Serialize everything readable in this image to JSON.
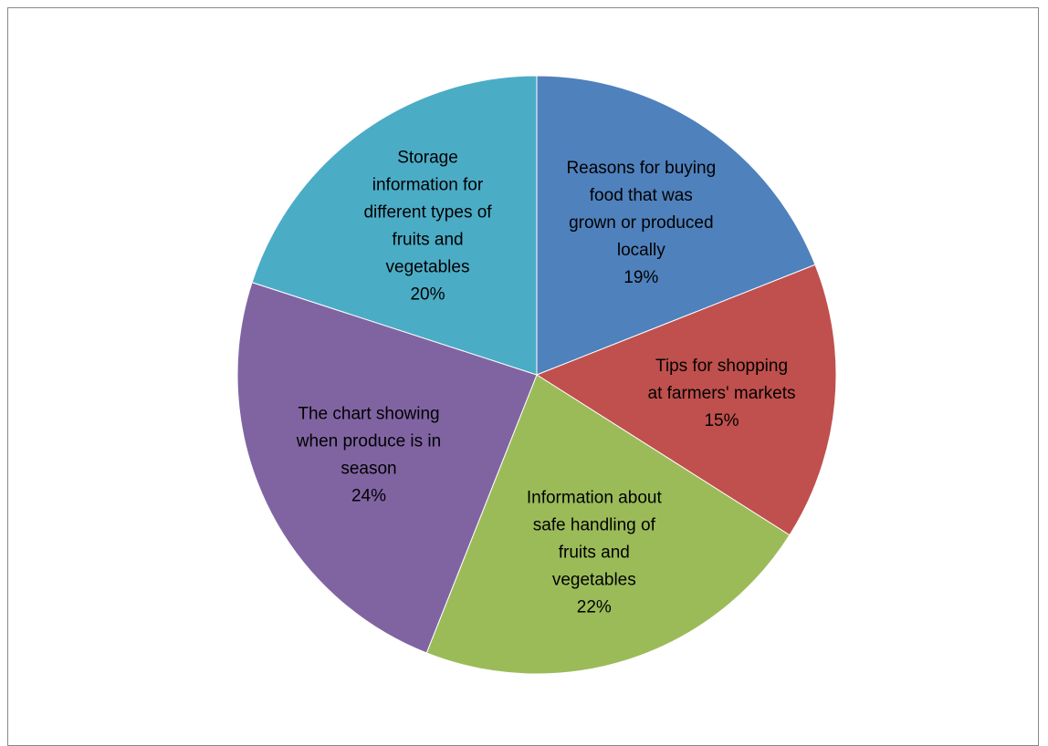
{
  "chart_data": {
    "type": "pie",
    "title": "",
    "start": "12 o'clock",
    "direction": "clockwise",
    "slices": [
      {
        "name": "Reasons for buying food that was grown or produced locally",
        "label_lines": [
          "Reasons for buying",
          "food that was",
          "grown or produced",
          "locally"
        ],
        "percent_label": "19%",
        "value": 19,
        "color": "#4F81BD"
      },
      {
        "name": "Tips for shopping at farmers' markets",
        "label_lines": [
          "Tips for shopping",
          "at farmers' markets"
        ],
        "percent_label": "15%",
        "value": 15,
        "color": "#C0504D"
      },
      {
        "name": "Information about safe handling of fruits and vegetables",
        "label_lines": [
          "Information about",
          "safe handling of",
          "fruits and",
          "vegetables"
        ],
        "percent_label": "22%",
        "value": 22,
        "color": "#9BBB59"
      },
      {
        "name": "The chart showing when produce is in season",
        "label_lines": [
          "The chart showing",
          "when produce is in",
          "season"
        ],
        "percent_label": "24%",
        "value": 24,
        "color": "#8064A2"
      },
      {
        "name": "Storage information for different types of fruits and vegetables",
        "label_lines": [
          "Storage",
          "information for",
          "different types of",
          "fruits and",
          "vegetables"
        ],
        "percent_label": "20%",
        "value": 20,
        "color": "#4BACC6"
      }
    ]
  }
}
